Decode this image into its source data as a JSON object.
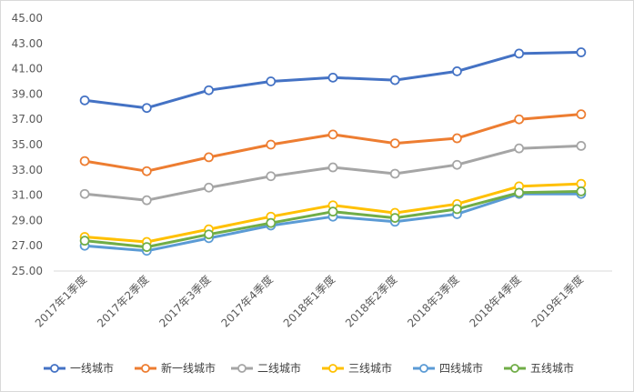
{
  "chart_data": {
    "type": "line",
    "title": "",
    "xlabel": "",
    "ylabel": "",
    "categories": [
      "2017年1季度",
      "2017年2季度",
      "2017年3季度",
      "2017年4季度",
      "2018年1季度",
      "2018年2季度",
      "2018年3季度",
      "2018年4季度",
      "2019年1季度"
    ],
    "y_ticks": [
      "25.00",
      "27.00",
      "29.00",
      "31.00",
      "33.00",
      "35.00",
      "37.00",
      "39.00",
      "41.00",
      "43.00",
      "45.00"
    ],
    "ylim": [
      25,
      45
    ],
    "grid": false,
    "legend_position": "bottom",
    "series": [
      {
        "name": "一线城市",
        "color": "#4472c4",
        "values": [
          38.5,
          37.9,
          39.3,
          40.0,
          40.3,
          40.1,
          40.8,
          42.2,
          42.3
        ]
      },
      {
        "name": "新一线城市",
        "color": "#ed7d31",
        "values": [
          33.7,
          32.9,
          34.0,
          35.0,
          35.8,
          35.1,
          35.5,
          37.0,
          37.4
        ]
      },
      {
        "name": "二线城市",
        "color": "#a5a5a5",
        "values": [
          31.1,
          30.6,
          31.6,
          32.5,
          33.2,
          32.7,
          33.4,
          34.7,
          34.9
        ]
      },
      {
        "name": "三线城市",
        "color": "#ffc000",
        "values": [
          27.7,
          27.3,
          28.3,
          29.3,
          30.2,
          29.6,
          30.3,
          31.7,
          31.9
        ]
      },
      {
        "name": "四线城市",
        "color": "#5b9bd5",
        "values": [
          27.0,
          26.6,
          27.6,
          28.6,
          29.3,
          28.9,
          29.5,
          31.1,
          31.1
        ]
      },
      {
        "name": "五线城市",
        "color": "#70ad47",
        "values": [
          27.4,
          26.9,
          27.9,
          28.8,
          29.7,
          29.2,
          29.9,
          31.2,
          31.3
        ]
      }
    ]
  }
}
